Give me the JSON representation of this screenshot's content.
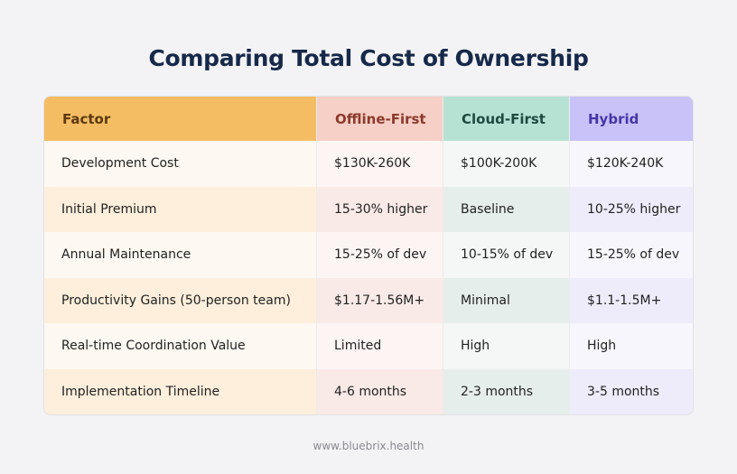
{
  "header": {
    "title": "Comparing Total Cost of Ownership"
  },
  "table": {
    "columns": [
      "Factor",
      "Offline-First",
      "Cloud-First",
      "Hybrid"
    ],
    "rows": [
      [
        "Development Cost",
        "$130K-260K",
        "$100K-200K",
        "$120K-240K"
      ],
      [
        "Initial Premium",
        "15-30% higher",
        "Baseline",
        "10-25% higher"
      ],
      [
        "Annual Maintenance",
        "15-25% of dev",
        "10-15% of dev",
        "15-25% of dev"
      ],
      [
        "Productivity Gains (50-person team)",
        "$1.17-1.56M+",
        "Minimal",
        "$1.1-1.5M+"
      ],
      [
        "Real-time Coordination Value",
        "Limited",
        "High",
        "High"
      ],
      [
        "Implementation Timeline",
        "4-6 months",
        "2-3 months",
        "3-5 months"
      ]
    ]
  },
  "footer": {
    "text": "www.bluebrix.health"
  }
}
